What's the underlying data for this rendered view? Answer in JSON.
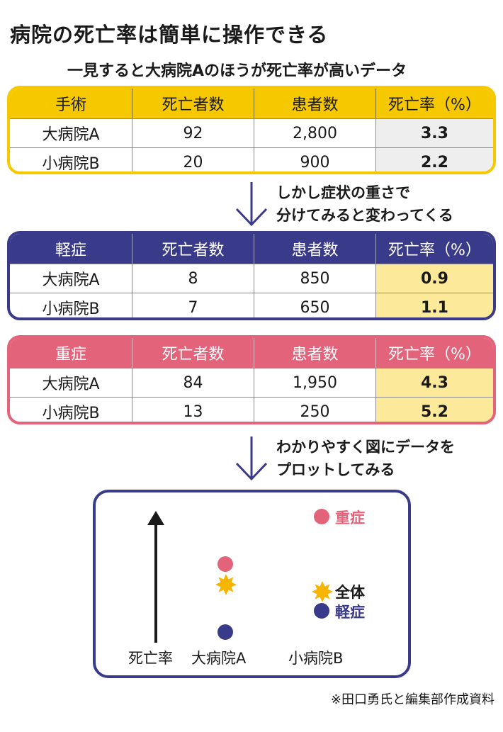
{
  "title": "病院の死亡率は簡単に操作できる",
  "subtitle": "一見すると大病院Aのほうが死亡率が高いデータ",
  "tables": {
    "overall": {
      "headers": [
        "手術",
        "死亡者数",
        "患者数",
        "死亡率（%）"
      ],
      "rows": [
        [
          "大病院A",
          "92",
          "2,800",
          "3.3"
        ],
        [
          "小病院B",
          "20",
          "900",
          "2.2"
        ]
      ]
    },
    "mild": {
      "headers": [
        "軽症",
        "死亡者数",
        "患者数",
        "死亡率（%）"
      ],
      "rows": [
        [
          "大病院A",
          "8",
          "850",
          "0.9"
        ],
        [
          "小病院B",
          "7",
          "650",
          "1.1"
        ]
      ]
    },
    "severe": {
      "headers": [
        "重症",
        "死亡者数",
        "患者数",
        "死亡率（%）"
      ],
      "rows": [
        [
          "大病院A",
          "84",
          "1,950",
          "4.3"
        ],
        [
          "小病院B",
          "13",
          "250",
          "5.2"
        ]
      ]
    }
  },
  "notes": {
    "first": [
      "しかし症状の重さで",
      "分けてみると変わってくる"
    ],
    "second": [
      "わかりやすく図にデータを",
      "プロットしてみる"
    ]
  },
  "plot": {
    "y_label": "死亡率",
    "x_labels": [
      "大病院A",
      "小病院B"
    ],
    "legend": {
      "severe": "重症",
      "overall": "全体",
      "mild": "軽症"
    }
  },
  "source": "※田口勇氏と編集部作成資料",
  "colors": {
    "yellow": "#f6c800",
    "navy": "#3a3a8a",
    "pink": "#e3637a",
    "highlight": "#fde99a",
    "gray_cell": "#eeeeee",
    "star": "#f7b500"
  }
}
